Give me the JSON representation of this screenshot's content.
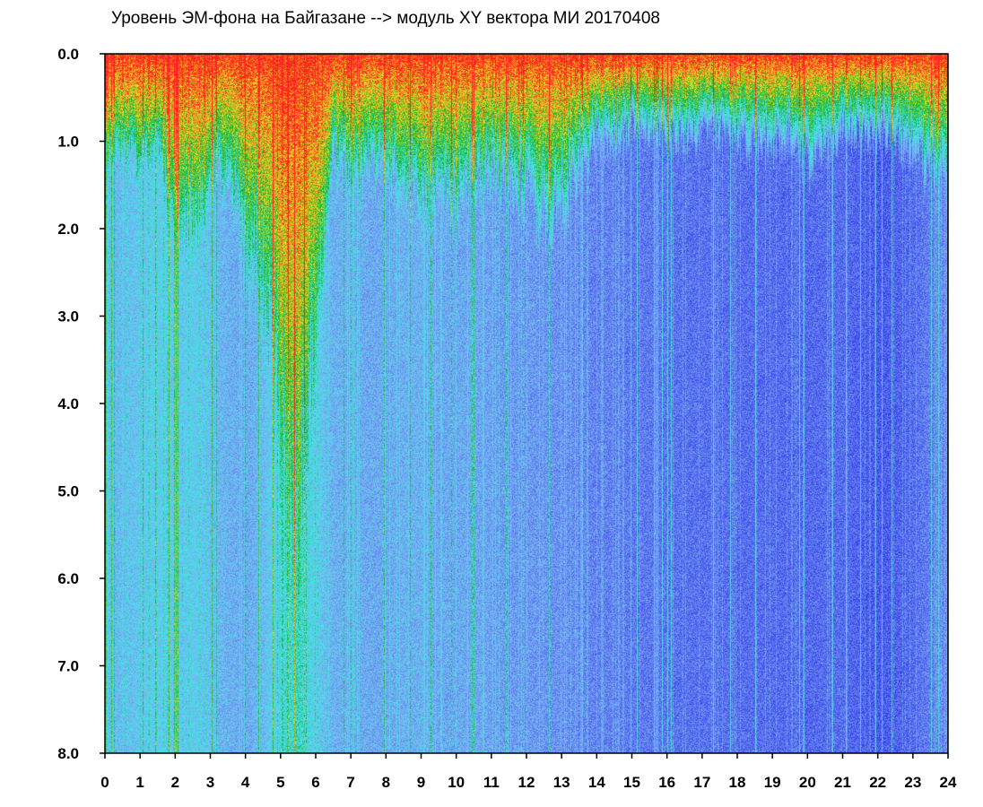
{
  "chart_data": {
    "type": "heatmap",
    "title": "Уровень ЭМ-фона на Байгазане  -->  модуль XY вектора МИ  20170408",
    "xlabel": "",
    "ylabel": "",
    "xlim": [
      0,
      24
    ],
    "ylim": [
      8.0,
      0.0
    ],
    "y_axis_inverted": true,
    "x_ticks": [
      "0",
      "1",
      "2",
      "3",
      "4",
      "5",
      "6",
      "7",
      "8",
      "9",
      "10",
      "11",
      "12",
      "13",
      "14",
      "15",
      "16",
      "17",
      "18",
      "19",
      "20",
      "21",
      "22",
      "23",
      "24"
    ],
    "y_ticks": [
      "0.0",
      "1.0",
      "2.0",
      "3.0",
      "4.0",
      "5.0",
      "6.0",
      "7.0",
      "8.0"
    ],
    "colorscale": [
      "#1010e0",
      "#5a6ef0",
      "#78b4f0",
      "#40e8e8",
      "#10b030",
      "#f0e020",
      "#ff2020"
    ],
    "x_hours": [
      0,
      0.5,
      1,
      1.5,
      2,
      2.5,
      3,
      3.5,
      4,
      4.5,
      5,
      5.5,
      6,
      6.5,
      7,
      7.5,
      8,
      8.5,
      9,
      9.5,
      10,
      10.5,
      11,
      11.5,
      12,
      12.5,
      13,
      13.5,
      14,
      14.5,
      15,
      15.5,
      16,
      16.5,
      17,
      17.5,
      18,
      18.5,
      19,
      19.5,
      20,
      20.5,
      21,
      21.5,
      22,
      22.5,
      23,
      23.5,
      24
    ],
    "activity_depth": [
      1.3,
      1.2,
      1.4,
      1.1,
      2.2,
      2.0,
      1.6,
      1.5,
      2.4,
      3.0,
      4.6,
      5.6,
      3.2,
      1.3,
      1.5,
      1.4,
      1.3,
      1.7,
      1.9,
      1.7,
      1.8,
      1.6,
      1.5,
      1.5,
      1.7,
      2.0,
      1.9,
      1.3,
      1.1,
      1.0,
      0.9,
      0.9,
      1.0,
      1.0,
      1.0,
      0.9,
      1.0,
      1.1,
      1.1,
      1.0,
      1.3,
      1.1,
      0.9,
      1.0,
      1.0,
      1.0,
      1.2,
      1.4,
      1.4
    ],
    "background_level": [
      0.45,
      0.45,
      0.48,
      0.5,
      0.48,
      0.5,
      0.45,
      0.42,
      0.4,
      0.45,
      0.55,
      0.6,
      0.5,
      0.42,
      0.42,
      0.4,
      0.4,
      0.42,
      0.42,
      0.4,
      0.4,
      0.4,
      0.38,
      0.36,
      0.36,
      0.35,
      0.34,
      0.32,
      0.3,
      0.3,
      0.28,
      0.28,
      0.27,
      0.26,
      0.26,
      0.26,
      0.25,
      0.25,
      0.25,
      0.24,
      0.24,
      0.25,
      0.25,
      0.22,
      0.2,
      0.22,
      0.25,
      0.3,
      0.32
    ]
  }
}
